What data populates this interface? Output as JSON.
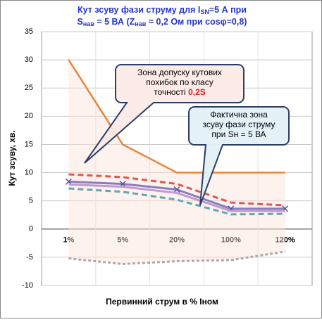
{
  "chart_data": {
    "type": "line",
    "title": [
      [
        "Кут зсуву фази струму  для I",
        "SN",
        "=5 А при"
      ],
      [
        "S",
        "нав",
        " = 5 ВА (Z",
        "нав",
        " = 0,2 Ом при cosφ=0,8)"
      ]
    ],
    "xlabel": "Первинний струм в % Іном",
    "ylabel": "Кут зсуву, хв.",
    "categories": [
      "1%",
      "5%",
      "20%",
      "100%",
      "120%"
    ],
    "ylim": [
      -10,
      35
    ],
    "yticks": [
      -10,
      -5,
      0,
      5,
      10,
      15,
      20,
      25,
      30,
      35
    ],
    "grid": true,
    "series": [
      {
        "color": "#e8843a",
        "values": [
          30,
          15,
          10,
          10,
          10
        ]
      },
      {
        "color": "#e05555",
        "dash": true,
        "values": [
          9.7,
          9.2,
          8,
          4.7,
          4.2
        ]
      },
      {
        "color": "#8a7cc0",
        "marker": "x",
        "values": [
          8.4,
          8.0,
          7.0,
          3.6,
          3.6
        ]
      },
      {
        "color": "#c09ad0",
        "values": [
          7.9,
          7.5,
          6.4,
          3.2,
          3.2
        ]
      },
      {
        "color": "#5fa8b0",
        "dash": true,
        "values": [
          7.2,
          6.6,
          5.2,
          2.6,
          2.7
        ]
      },
      {
        "color": "#aaaaaa",
        "dash": true,
        "values": [
          -5.2,
          -6.2,
          -5.7,
          -5.5,
          -4
        ]
      }
    ],
    "annotations": [
      {
        "lines": [
          "Зона допуску кутових",
          "похибок  по класу",
          "точності "
        ],
        "highlight": "0,2S"
      },
      {
        "lines": [
          "Фактична зона",
          "зсуву фази  струму",
          "при Sн = 5 ВА"
        ]
      }
    ]
  }
}
